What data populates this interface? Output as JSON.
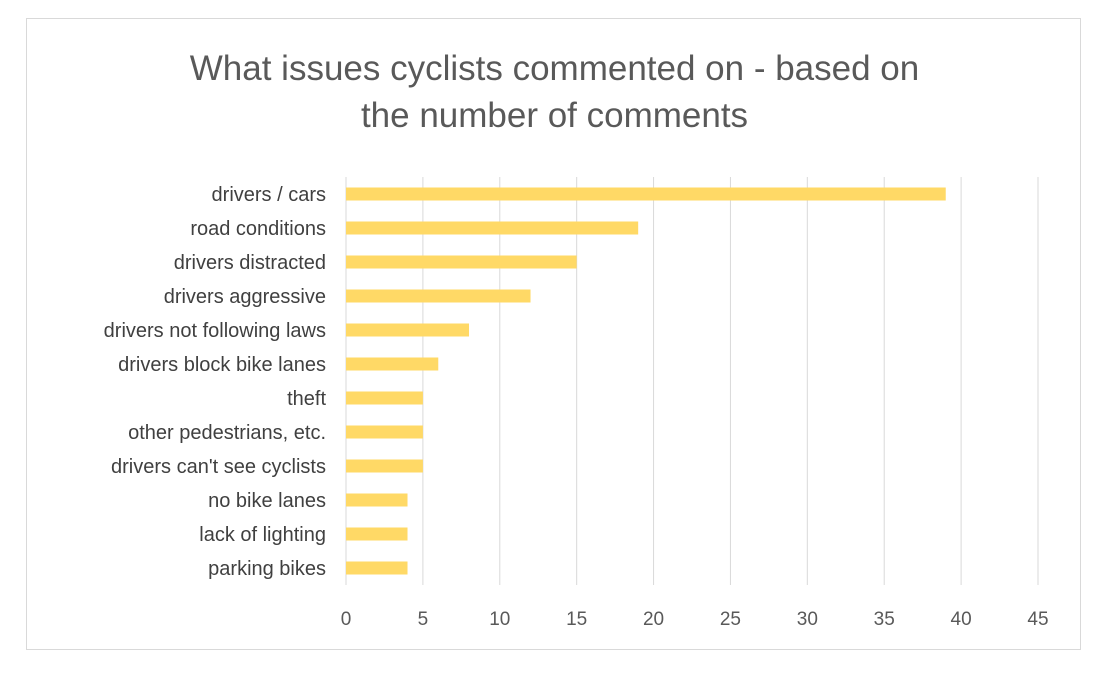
{
  "chart_data": {
    "type": "bar",
    "orientation": "horizontal",
    "title_lines": [
      "What issues cyclists commented on - based on",
      "the number of comments"
    ],
    "categories": [
      "drivers / cars",
      "road conditions",
      "drivers distracted",
      "drivers aggressive",
      "drivers not following laws",
      "drivers block bike lanes",
      "theft",
      "other pedestrians, etc.",
      "drivers can't see cyclists",
      "no bike lanes",
      "lack of lighting",
      "parking bikes"
    ],
    "values": [
      39,
      19,
      15,
      12,
      8,
      6,
      5,
      5,
      5,
      4,
      4,
      4
    ],
    "xlim": [
      0,
      45
    ],
    "xticks": [
      0,
      5,
      10,
      15,
      20,
      25,
      30,
      35,
      40,
      45
    ],
    "grid": "vertical",
    "legend": "none",
    "bar_color": "#ffd966",
    "grid_color": "#d9d9d9"
  }
}
